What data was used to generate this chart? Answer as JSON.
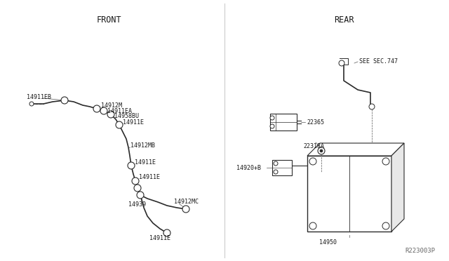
{
  "bg_color": "#ffffff",
  "line_color": "#2a2a2a",
  "text_color": "#1a1a1a",
  "title_front": "FRONT",
  "title_rear": "REAR",
  "watermark": "R223003P",
  "note": "SEE SEC.747",
  "fig_w": 6.4,
  "fig_h": 3.72,
  "dpi": 100
}
